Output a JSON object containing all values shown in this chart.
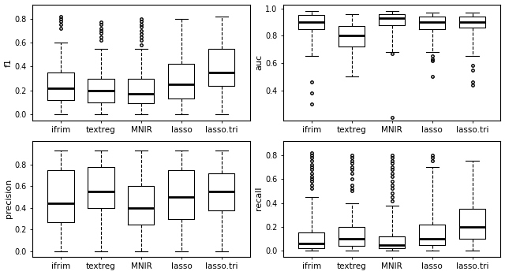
{
  "categories": [
    "ifrim",
    "textreg",
    "MNIR",
    "lasso",
    "lasso.tri"
  ],
  "f1": {
    "whislo": [
      0.0,
      0.0,
      0.0,
      0.0,
      0.0
    ],
    "q1": [
      0.12,
      0.1,
      0.09,
      0.13,
      0.24
    ],
    "med": [
      0.22,
      0.2,
      0.17,
      0.25,
      0.35
    ],
    "q3": [
      0.35,
      0.3,
      0.3,
      0.42,
      0.55
    ],
    "whishi": [
      0.6,
      0.55,
      0.55,
      0.8,
      0.82
    ],
    "fliers_high": [
      [
        0.72,
        0.75,
        0.78,
        0.8,
        0.82
      ],
      [
        0.62,
        0.65,
        0.68,
        0.7,
        0.72,
        0.75,
        0.77
      ],
      [
        0.58,
        0.62,
        0.65,
        0.67,
        0.7,
        0.73,
        0.75,
        0.78,
        0.8
      ],
      [],
      []
    ],
    "fliers_low": [
      [],
      [],
      [],
      [],
      []
    ]
  },
  "auc": {
    "whislo": [
      0.65,
      0.5,
      0.68,
      0.68,
      0.65
    ],
    "q1": [
      0.85,
      0.72,
      0.88,
      0.85,
      0.86
    ],
    "med": [
      0.9,
      0.8,
      0.93,
      0.9,
      0.9
    ],
    "q3": [
      0.95,
      0.87,
      0.96,
      0.94,
      0.94
    ],
    "whishi": [
      0.98,
      0.96,
      0.98,
      0.97,
      0.97
    ],
    "fliers_high": [
      [],
      [],
      [],
      [],
      []
    ],
    "fliers_low": [
      [
        0.46,
        0.38
      ],
      [],
      [
        0.67
      ],
      [
        0.62,
        0.63,
        0.65
      ],
      [
        0.58,
        0.55,
        0.46,
        0.44
      ]
    ],
    "fliers_very_low": [
      [
        0.3
      ],
      [],
      [
        0.2
      ],
      [
        0.5
      ],
      []
    ]
  },
  "precision": {
    "whislo": [
      0.0,
      0.0,
      0.0,
      0.0,
      0.0
    ],
    "q1": [
      0.27,
      0.4,
      0.25,
      0.3,
      0.38
    ],
    "med": [
      0.44,
      0.55,
      0.4,
      0.5,
      0.55
    ],
    "q3": [
      0.75,
      0.78,
      0.6,
      0.75,
      0.72
    ],
    "whishi": [
      0.93,
      0.93,
      0.93,
      0.93,
      0.93
    ],
    "fliers_high": [
      [],
      [],
      [],
      [],
      []
    ],
    "fliers_low": [
      [],
      [],
      [],
      [],
      []
    ]
  },
  "recall": {
    "whislo": [
      0.0,
      0.0,
      0.0,
      0.0,
      0.0
    ],
    "q1": [
      0.02,
      0.04,
      0.02,
      0.05,
      0.1
    ],
    "med": [
      0.06,
      0.1,
      0.05,
      0.1,
      0.2
    ],
    "q3": [
      0.15,
      0.2,
      0.12,
      0.22,
      0.35
    ],
    "whishi": [
      0.45,
      0.4,
      0.38,
      0.7,
      0.75
    ],
    "fliers_high": [
      [
        0.52,
        0.55,
        0.58,
        0.6,
        0.62,
        0.65,
        0.68,
        0.7,
        0.72,
        0.75,
        0.78,
        0.8,
        0.82
      ],
      [
        0.5,
        0.52,
        0.55,
        0.6,
        0.65,
        0.68,
        0.7,
        0.73,
        0.75,
        0.78,
        0.8
      ],
      [
        0.42,
        0.45,
        0.48,
        0.52,
        0.55,
        0.58,
        0.62,
        0.65,
        0.68,
        0.7,
        0.73,
        0.75,
        0.78,
        0.8
      ],
      [
        0.75,
        0.78,
        0.8
      ],
      []
    ],
    "fliers_low": [
      [],
      [],
      [],
      [],
      []
    ]
  },
  "background_color": "#ffffff"
}
